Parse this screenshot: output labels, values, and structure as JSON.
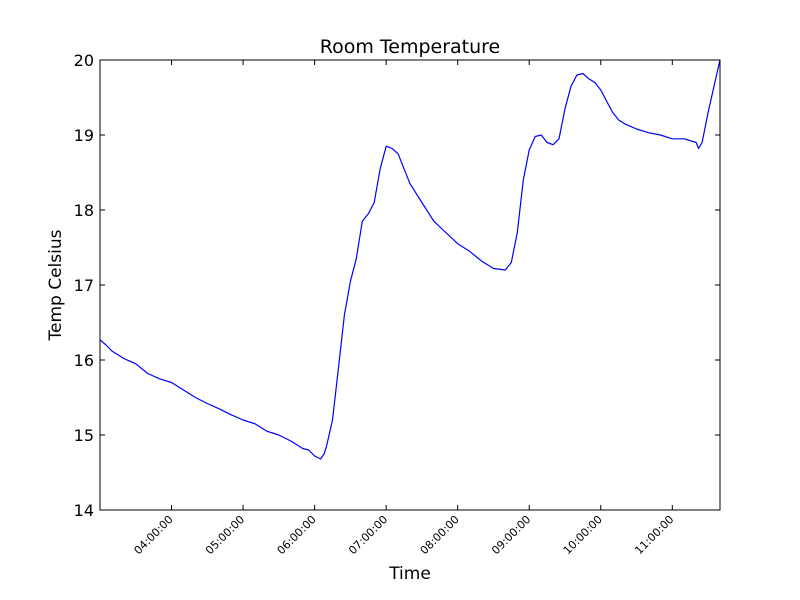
{
  "chart_data": {
    "type": "line",
    "title": "Room Temperature",
    "xlabel": "Time",
    "ylabel": "Temp Celsius",
    "xlim": [
      "03:00:00",
      "11:40:00"
    ],
    "ylim": [
      14,
      20
    ],
    "grid": false,
    "yticks": [
      "14",
      "15",
      "16",
      "17",
      "18",
      "19",
      "20"
    ],
    "xticks": [
      "04:00:00",
      "05:00:00",
      "06:00:00",
      "07:00:00",
      "08:00:00",
      "09:00:00",
      "10:00:00",
      "11:00:00"
    ],
    "series": [
      {
        "color": "#0000ff",
        "x": [
          "03:00",
          "03:05",
          "03:10",
          "03:15",
          "03:20",
          "03:30",
          "03:40",
          "03:50",
          "04:00",
          "04:10",
          "04:20",
          "04:30",
          "04:40",
          "04:50",
          "05:00",
          "05:10",
          "05:20",
          "05:30",
          "05:40",
          "05:50",
          "05:55",
          "06:00",
          "06:05",
          "06:08",
          "06:10",
          "06:15",
          "06:20",
          "06:25",
          "06:30",
          "06:35",
          "06:40",
          "06:45",
          "06:50",
          "06:55",
          "07:00",
          "07:05",
          "07:10",
          "07:15",
          "07:20",
          "07:30",
          "07:40",
          "07:50",
          "08:00",
          "08:10",
          "08:20",
          "08:30",
          "08:40",
          "08:45",
          "08:50",
          "08:55",
          "09:00",
          "09:05",
          "09:10",
          "09:15",
          "09:20",
          "09:25",
          "09:30",
          "09:35",
          "09:40",
          "09:45",
          "09:50",
          "09:55",
          "10:00",
          "10:05",
          "10:10",
          "10:15",
          "10:20",
          "10:30",
          "10:40",
          "10:50",
          "11:00",
          "11:10",
          "11:20",
          "11:22",
          "11:25",
          "11:30",
          "11:35",
          "11:40"
        ],
        "y": [
          16.27,
          16.2,
          16.12,
          16.07,
          16.02,
          15.95,
          15.82,
          15.75,
          15.7,
          15.6,
          15.5,
          15.42,
          15.35,
          15.27,
          15.2,
          15.15,
          15.05,
          15.0,
          14.92,
          14.82,
          14.8,
          14.72,
          14.68,
          14.75,
          14.85,
          15.2,
          15.9,
          16.6,
          17.05,
          17.35,
          17.85,
          17.95,
          18.1,
          18.55,
          18.85,
          18.82,
          18.75,
          18.55,
          18.35,
          18.1,
          17.85,
          17.7,
          17.55,
          17.45,
          17.32,
          17.22,
          17.2,
          17.3,
          17.7,
          18.4,
          18.8,
          18.98,
          19.0,
          18.9,
          18.87,
          18.95,
          19.35,
          19.65,
          19.8,
          19.82,
          19.75,
          19.7,
          19.6,
          19.45,
          19.3,
          19.2,
          19.15,
          19.08,
          19.03,
          19.0,
          18.95,
          18.95,
          18.9,
          18.82,
          18.9,
          19.3,
          19.65,
          20.0
        ]
      }
    ]
  }
}
